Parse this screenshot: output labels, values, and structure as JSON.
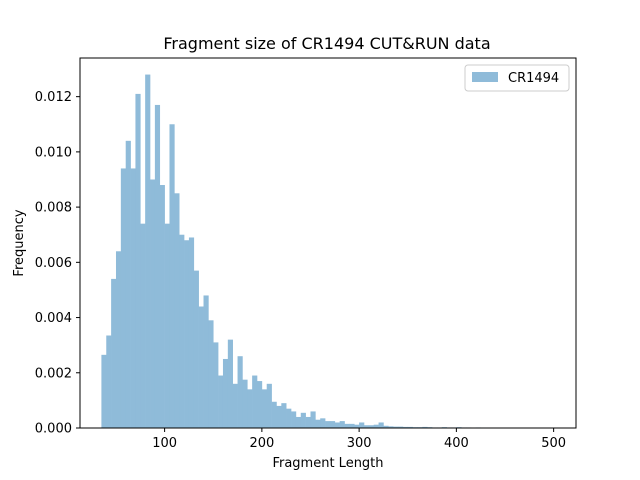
{
  "chart_data": {
    "type": "bar",
    "subtype": "histogram",
    "title": "Fragment size of CR1494 CUT&RUN data",
    "xlabel": "Fragment Length",
    "ylabel": "Frequency",
    "xlim": [
      13,
      523
    ],
    "ylim": [
      0,
      0.0134
    ],
    "x_ticks": [
      100,
      200,
      300,
      400,
      500
    ],
    "x_tick_labels": [
      "100",
      "200",
      "300",
      "400",
      "500"
    ],
    "y_ticks": [
      0.0,
      0.002,
      0.004,
      0.006,
      0.008,
      0.01,
      0.012
    ],
    "y_tick_labels": [
      "0.000",
      "0.002",
      "0.004",
      "0.006",
      "0.008",
      "0.010",
      "0.012"
    ],
    "grid": false,
    "legend_position": "top-right",
    "bar_color": "#8fbbd9",
    "series": [
      {
        "name": "CR1494",
        "bin_width": 5,
        "bin_start": 35,
        "values": [
          0.00265,
          0.00335,
          0.0054,
          0.0064,
          0.0094,
          0.0104,
          0.0094,
          0.0121,
          0.0074,
          0.0128,
          0.009,
          0.0117,
          0.0088,
          0.0074,
          0.011,
          0.0085,
          0.007,
          0.0068,
          0.0069,
          0.0057,
          0.0044,
          0.0048,
          0.0039,
          0.0031,
          0.0019,
          0.0025,
          0.0032,
          0.0016,
          0.0026,
          0.00175,
          0.0014,
          0.0019,
          0.0017,
          0.0014,
          0.0016,
          0.00095,
          0.0008,
          0.0009,
          0.0007,
          0.0006,
          0.0004,
          0.00055,
          0.0004,
          0.0006,
          0.0003,
          0.00035,
          0.00025,
          0.00025,
          0.0002,
          0.00025,
          0.00015,
          0.00015,
          0.00012,
          0.0002,
          0.0001,
          0.0001,
          0.00012,
          0.0002,
          8e-05,
          6e-05,
          5e-05,
          5e-05,
          4e-05,
          4e-05,
          3e-05,
          3e-05,
          4e-05,
          3e-05,
          2e-05,
          2e-05,
          3e-05,
          2e-05,
          2e-05,
          3e-05,
          2e-05,
          2e-05,
          1e-05,
          2e-05,
          1e-05,
          1e-05,
          1e-05,
          1e-05,
          1e-05,
          1e-05,
          1e-05,
          1e-05,
          1e-05,
          1e-05,
          1e-05,
          1e-05,
          1e-05,
          1e-05,
          1e-05
        ]
      }
    ]
  }
}
